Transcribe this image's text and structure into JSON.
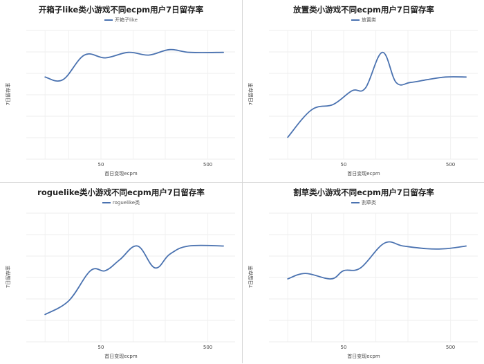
{
  "chart_data": [
    {
      "type": "line",
      "title": "开箱子like类小游戏不同ecpm用户7日留存率",
      "xlabel": "首日变现ecpm",
      "ylabel": "7日留存率",
      "xticks": [
        "50",
        "500"
      ],
      "series": [
        {
          "name": "开箱子like",
          "x": [
            15,
            22,
            35,
            55,
            90,
            140,
            220,
            340,
            700
          ],
          "y": [
            0.55,
            0.54,
            0.63,
            0.62,
            0.64,
            0.63,
            0.65,
            0.64,
            0.64
          ]
        }
      ]
    },
    {
      "type": "line",
      "title": "放置类小游戏不同ecpm用户7日留存率",
      "xlabel": "首日变现ecpm",
      "ylabel": "7日留存率",
      "xticks": [
        "50",
        "500"
      ],
      "series": [
        {
          "name": "放置类",
          "x": [
            15,
            25,
            40,
            60,
            80,
            115,
            155,
            210,
            300,
            450,
            700
          ],
          "y": [
            0.33,
            0.43,
            0.45,
            0.5,
            0.51,
            0.64,
            0.53,
            0.53,
            0.54,
            0.55,
            0.55
          ]
        }
      ]
    },
    {
      "type": "line",
      "title": "roguelike类小游戏不同ecpm用户7日留存率",
      "xlabel": "首日变现ecpm",
      "ylabel": "7日留存率",
      "xticks": [
        "50",
        "500"
      ],
      "series": [
        {
          "name": "roguelike类",
          "x": [
            15,
            25,
            40,
            55,
            75,
            110,
            160,
            220,
            330,
            700
          ],
          "y": [
            0.35,
            0.4,
            0.51,
            0.51,
            0.55,
            0.6,
            0.52,
            0.57,
            0.6,
            0.6
          ]
        }
      ]
    },
    {
      "type": "line",
      "title": "割草类小游戏不同ecpm用户7日留存率",
      "xlabel": "首日变现ecpm",
      "ylabel": "7日留存率",
      "xticks": [
        "50",
        "500"
      ],
      "series": [
        {
          "name": "割草类",
          "x": [
            15,
            22,
            38,
            50,
            72,
            120,
            180,
            300,
            450,
            700
          ],
          "y": [
            0.48,
            0.5,
            0.48,
            0.51,
            0.52,
            0.61,
            0.6,
            0.59,
            0.59,
            0.6
          ]
        }
      ]
    }
  ]
}
